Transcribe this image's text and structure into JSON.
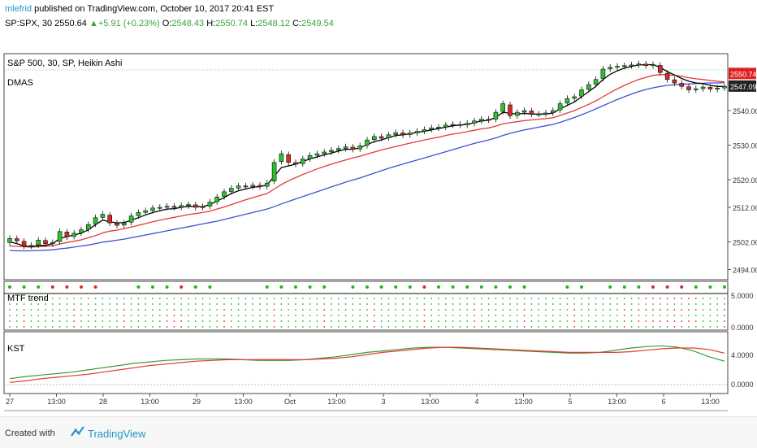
{
  "header": {
    "author": "mlefrid",
    "published_text": " published on TradingView.com, October 10, 2017 20:41 EST",
    "symbol": "SP:SPX, 30",
    "last": "2550.64",
    "change": "+5.91 (+0.23%)",
    "o_label": "O:",
    "o_val": "2548.43",
    "h_label": "H:",
    "h_val": "2550.74",
    "l_label": "L:",
    "l_val": "2548.12",
    "c_label": "C:",
    "c_val": "2549.54"
  },
  "footer": {
    "created_with": "Created with",
    "brand": "TradingView"
  },
  "colors": {
    "up": "#2bc22b",
    "down": "#d42a2a",
    "ma_fast": "#000000",
    "ma_mid": "#e53935",
    "ma_slow": "#3f51d5",
    "kst_main": "#3c9a3c",
    "kst_signal": "#e53935",
    "price_tag_red": "#e01f1f",
    "price_tag_dark": "#222222",
    "last_line": "#3fbf3f"
  },
  "chart_data": [
    {
      "type": "candlestick",
      "title": "S&P 500, 30, SP, Heikin Ashi",
      "indicator": "DMAS",
      "ylim": [
        2492,
        2556
      ],
      "y_ticks": [
        2494.0,
        2502.0,
        2512.0,
        2520.0,
        2530.0,
        2540.0
      ],
      "y_tick_labels": [
        "2494.00",
        "2502.00",
        "2512.00",
        "2520.00",
        "2530.00",
        "2540.00"
      ],
      "last_price_labels": [
        "2550.74",
        "2547.09"
      ],
      "x_tick_labels": [
        "27",
        "13:00",
        "28",
        "13:00",
        "29",
        "13:00",
        "Oct",
        "13:00",
        "3",
        "13:00",
        "4",
        "13:00",
        "5",
        "13:00",
        "6",
        "13:00"
      ],
      "close": [
        2503.0,
        2502.3,
        2500.8,
        2501.0,
        2502.5,
        2501.5,
        2501.8,
        2505.0,
        2503.5,
        2504.5,
        2505.5,
        2507.0,
        2509.0,
        2510.0,
        2507.5,
        2506.8,
        2507.5,
        2509.5,
        2510.5,
        2511.0,
        2511.8,
        2512.0,
        2512.3,
        2512.0,
        2512.5,
        2512.8,
        2512.0,
        2512.2,
        2513.5,
        2515.0,
        2516.5,
        2517.5,
        2518.2,
        2518.0,
        2518.4,
        2518.0,
        2519.0,
        2525.0,
        2527.5,
        2525.0,
        2524.5,
        2526.0,
        2527.0,
        2527.5,
        2528.0,
        2528.5,
        2529.0,
        2529.5,
        2528.8,
        2529.8,
        2531.5,
        2532.5,
        2532.0,
        2533.0,
        2533.6,
        2533.0,
        2533.5,
        2534.0,
        2534.5,
        2535.0,
        2535.2,
        2535.8,
        2536.0,
        2535.8,
        2536.3,
        2537.0,
        2537.5,
        2537.3,
        2539.5,
        2542.0,
        2538.5,
        2539.5,
        2540.0,
        2539.0,
        2539.0,
        2539.3,
        2540.0,
        2542.0,
        2543.5,
        2544.0,
        2546.0,
        2547.5,
        2549.0,
        2552.0,
        2552.5,
        2552.8,
        2553.0,
        2553.2,
        2553.5,
        2553.0,
        2553.3,
        2551.0,
        2549.0,
        2548.0,
        2547.0,
        2546.0,
        2546.3,
        2546.8,
        2546.2,
        2546.5,
        2547.0
      ],
      "ma_fast": [
        2502.0,
        2501.5,
        2500.8,
        2500.6,
        2501.0,
        2501.0,
        2501.5,
        2503.0,
        2503.5,
        2504.0,
        2504.5,
        2505.5,
        2507.0,
        2508.3,
        2507.8,
        2507.5,
        2507.6,
        2508.3,
        2509.0,
        2509.8,
        2510.5,
        2511.0,
        2511.5,
        2511.6,
        2512.0,
        2512.3,
        2512.2,
        2512.2,
        2512.8,
        2513.8,
        2514.8,
        2516.0,
        2516.8,
        2517.3,
        2517.8,
        2518.0,
        2518.5,
        2521.0,
        2523.5,
        2524.0,
        2524.5,
        2525.3,
        2526.0,
        2526.6,
        2527.2,
        2527.7,
        2528.3,
        2528.8,
        2528.8,
        2529.2,
        2530.2,
        2531.0,
        2531.5,
        2532.2,
        2532.8,
        2533.0,
        2533.3,
        2533.7,
        2534.0,
        2534.4,
        2534.8,
        2535.2,
        2535.6,
        2535.8,
        2536.0,
        2536.5,
        2537.0,
        2537.2,
        2538.0,
        2539.5,
        2539.2,
        2539.0,
        2539.2,
        2539.0,
        2539.0,
        2539.0,
        2539.3,
        2540.5,
        2541.5,
        2542.5,
        2544.0,
        2545.5,
        2547.0,
        2549.0,
        2550.5,
        2551.5,
        2552.3,
        2552.8,
        2553.2,
        2553.3,
        2553.3,
        2552.5,
        2551.3,
        2550.3,
        2549.3,
        2548.5,
        2548.0,
        2547.8,
        2547.3,
        2547.0,
        2547.0
      ],
      "ma_mid": [
        2500.8,
        2500.7,
        2500.6,
        2500.5,
        2500.6,
        2500.7,
        2500.9,
        2501.4,
        2501.8,
        2502.2,
        2502.6,
        2503.2,
        2503.8,
        2504.6,
        2505.1,
        2505.4,
        2505.8,
        2506.3,
        2506.8,
        2507.3,
        2507.8,
        2508.3,
        2508.7,
        2509.1,
        2509.5,
        2509.9,
        2510.2,
        2510.5,
        2510.9,
        2511.5,
        2512.1,
        2512.8,
        2513.5,
        2514.2,
        2514.8,
        2515.4,
        2516.0,
        2517.3,
        2518.6,
        2519.7,
        2520.6,
        2521.5,
        2522.3,
        2523.1,
        2523.8,
        2524.5,
        2525.1,
        2525.7,
        2526.3,
        2526.8,
        2527.4,
        2528.0,
        2528.6,
        2529.1,
        2529.6,
        2530.1,
        2530.6,
        2531.0,
        2531.5,
        2531.9,
        2532.3,
        2532.8,
        2533.2,
        2533.5,
        2533.9,
        2534.3,
        2534.7,
        2535.0,
        2535.5,
        2536.2,
        2536.5,
        2536.8,
        2537.1,
        2537.3,
        2537.5,
        2537.7,
        2537.9,
        2538.6,
        2539.3,
        2540.0,
        2540.9,
        2541.8,
        2542.8,
        2544.0,
        2545.2,
        2546.3,
        2547.3,
        2548.2,
        2549.0,
        2549.6,
        2550.2,
        2550.4,
        2550.4,
        2550.2,
        2549.9,
        2549.5,
        2549.2,
        2549.0,
        2548.7,
        2548.5,
        2548.3
      ],
      "ma_slow": [
        2499.5,
        2499.4,
        2499.4,
        2499.4,
        2499.5,
        2499.6,
        2499.7,
        2500.0,
        2500.2,
        2500.5,
        2500.8,
        2501.1,
        2501.5,
        2501.9,
        2502.2,
        2502.5,
        2502.8,
        2503.2,
        2503.6,
        2504.0,
        2504.4,
        2504.8,
        2505.2,
        2505.6,
        2506.0,
        2506.4,
        2506.8,
        2507.2,
        2507.6,
        2508.0,
        2508.5,
        2509.0,
        2509.5,
        2510.0,
        2510.5,
        2511.0,
        2511.5,
        2512.2,
        2513.0,
        2513.7,
        2514.4,
        2515.1,
        2515.8,
        2516.5,
        2517.2,
        2517.9,
        2518.6,
        2519.3,
        2519.9,
        2520.5,
        2521.2,
        2521.9,
        2522.6,
        2523.3,
        2523.9,
        2524.5,
        2525.1,
        2525.7,
        2526.3,
        2526.9,
        2527.5,
        2528.1,
        2528.7,
        2529.3,
        2529.9,
        2530.5,
        2531.0,
        2531.5,
        2532.1,
        2532.8,
        2533.4,
        2533.9,
        2534.4,
        2534.8,
        2535.2,
        2535.6,
        2536.0,
        2536.6,
        2537.3,
        2538.0,
        2538.8,
        2539.6,
        2540.5,
        2541.4,
        2542.3,
        2543.2,
        2544.0,
        2544.8,
        2545.5,
        2546.1,
        2546.6,
        2547.0,
        2547.3,
        2547.5,
        2547.6,
        2547.7,
        2547.8,
        2547.9,
        2548.0,
        2548.0,
        2548.1
      ]
    },
    {
      "type": "dot-matrix",
      "title": "MTF trend",
      "y_tick_labels": [
        "5.0000",
        "0.0000"
      ]
    },
    {
      "type": "line",
      "title": "KST",
      "ylim": [
        -1,
        7
      ],
      "y_tick_labels": [
        "4.0000",
        "0.0000"
      ],
      "series": [
        {
          "values": [
            0.8,
            1.1,
            1.3,
            1.5,
            1.7,
            2.0,
            2.3,
            2.6,
            2.9,
            3.1,
            3.3,
            3.4,
            3.5,
            3.5,
            3.5,
            3.4,
            3.3,
            3.3,
            3.3,
            3.4,
            3.6,
            3.8,
            4.1,
            4.4,
            4.6,
            4.8,
            5.0,
            5.1,
            5.1,
            5.0,
            4.9,
            4.8,
            4.7,
            4.6,
            4.5,
            4.4,
            4.3,
            4.3,
            4.4,
            4.7,
            5.0,
            5.2,
            5.3,
            5.1,
            4.6,
            3.8,
            3.2
          ]
        },
        {
          "values": [
            0.3,
            0.5,
            0.8,
            1.0,
            1.2,
            1.4,
            1.7,
            2.0,
            2.3,
            2.6,
            2.8,
            3.0,
            3.2,
            3.3,
            3.4,
            3.4,
            3.4,
            3.4,
            3.4,
            3.4,
            3.5,
            3.6,
            3.8,
            4.1,
            4.4,
            4.6,
            4.8,
            5.0,
            5.1,
            5.1,
            5.0,
            4.9,
            4.8,
            4.7,
            4.6,
            4.5,
            4.4,
            4.4,
            4.4,
            4.4,
            4.5,
            4.7,
            4.9,
            5.0,
            5.0,
            4.8,
            4.3
          ]
        }
      ]
    }
  ]
}
